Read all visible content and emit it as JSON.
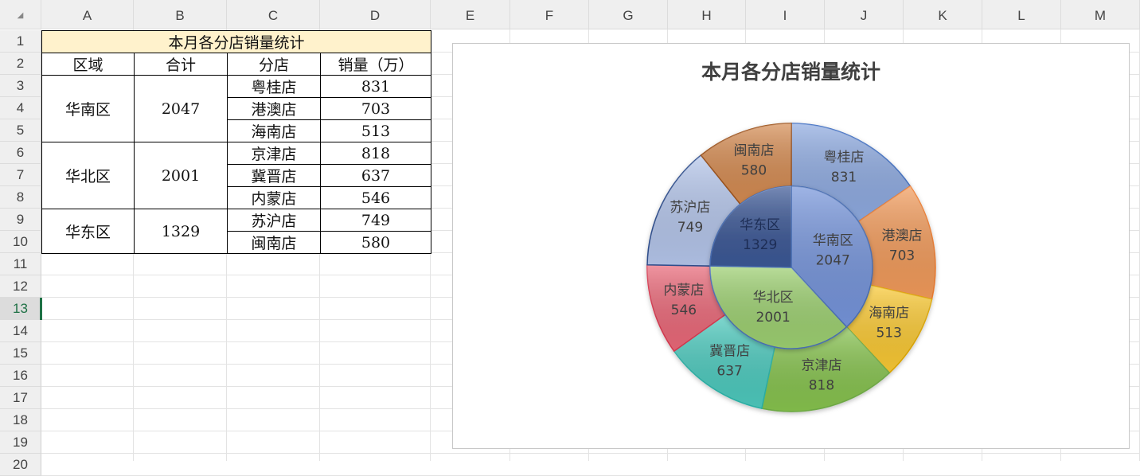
{
  "columns": [
    "A",
    "B",
    "C",
    "D",
    "E",
    "F",
    "G",
    "H",
    "I",
    "J",
    "K",
    "L",
    "M"
  ],
  "rows": [
    "1",
    "2",
    "3",
    "4",
    "5",
    "6",
    "7",
    "8",
    "9",
    "10",
    "11",
    "12",
    "13",
    "14",
    "15",
    "16",
    "17",
    "18",
    "19",
    "20"
  ],
  "selected_row": "13",
  "table": {
    "title": "本月各分店销量统计",
    "headers": [
      "区域",
      "合计",
      "分店",
      "销量（万）"
    ],
    "regions": [
      {
        "name": "华南区",
        "total": "2047",
        "stores": [
          {
            "name": "粤桂店",
            "sales": "831"
          },
          {
            "name": "港澳店",
            "sales": "703"
          },
          {
            "name": "海南店",
            "sales": "513"
          }
        ]
      },
      {
        "name": "华北区",
        "total": "2001",
        "stores": [
          {
            "name": "京津店",
            "sales": "818"
          },
          {
            "name": "冀晋店",
            "sales": "637"
          },
          {
            "name": "内蒙店",
            "sales": "546"
          }
        ]
      },
      {
        "name": "华东区",
        "total": "1329",
        "stores": [
          {
            "name": "苏沪店",
            "sales": "749"
          },
          {
            "name": "闽南店",
            "sales": "580"
          }
        ]
      }
    ]
  },
  "chart_data": {
    "type": "pie",
    "subtype": "sunburst-doughnut",
    "title": "本月各分店销量统计",
    "start": "top",
    "direction": "clockwise",
    "inner": {
      "categories": [
        "华南区",
        "华北区",
        "华东区"
      ],
      "values": [
        2047,
        2001,
        1329
      ],
      "colors": [
        "#7594da",
        "#9ccf70",
        "#3b5795"
      ]
    },
    "outer": {
      "categories": [
        "粤桂店",
        "港澳店",
        "海南店",
        "京津店",
        "冀晋店",
        "内蒙店",
        "苏沪店",
        "闽南店"
      ],
      "values": [
        831,
        703,
        513,
        818,
        637,
        546,
        749,
        580
      ],
      "colors": [
        "#8eaae0",
        "#f19a5a",
        "#f9c832",
        "#86c24e",
        "#4cc9bd",
        "#e96878",
        "#b4c5ea",
        "#d48b52"
      ],
      "borders": [
        "#4472c4",
        "#ed7d31",
        "#e0a800",
        "#70ad47",
        "#2bb3a8",
        "#d9384f",
        "#2f4f8f",
        "#a0541c"
      ]
    }
  }
}
